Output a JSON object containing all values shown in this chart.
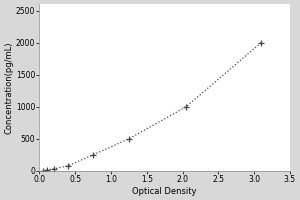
{
  "x_data": [
    0.05,
    0.1,
    0.2,
    0.4,
    0.75,
    1.25,
    2.05,
    3.1
  ],
  "y_data": [
    0,
    15,
    30,
    80,
    250,
    500,
    1000,
    2000
  ],
  "xlabel": "Optical Density",
  "ylabel": "Concentration(pg/mL)",
  "xlim": [
    0,
    3.5
  ],
  "ylim": [
    0,
    2600
  ],
  "xticks": [
    0,
    0.5,
    1.0,
    1.5,
    2.0,
    2.5,
    3.0,
    3.5
  ],
  "yticks": [
    0,
    500,
    1000,
    1500,
    2000,
    2500
  ],
  "bg_color": "#d8d8d8",
  "plot_bg_color": "#ffffff",
  "line_color": "#444444",
  "marker_color": "#444444",
  "label_fontsize": 6,
  "tick_fontsize": 5.5
}
